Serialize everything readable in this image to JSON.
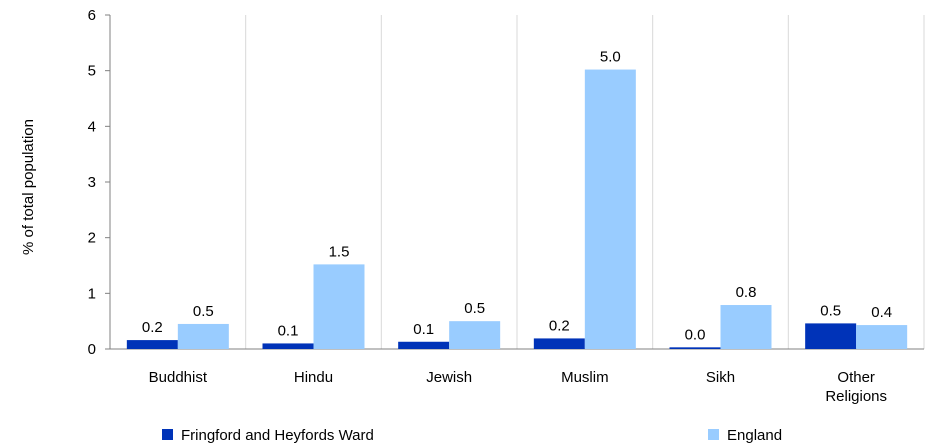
{
  "chart_data": {
    "type": "bar",
    "ylabel": "% of total population",
    "ylim": [
      0,
      6
    ],
    "yticks": [
      0,
      1,
      2,
      3,
      4,
      5,
      6
    ],
    "categories": [
      [
        "Buddhist"
      ],
      [
        "Hindu"
      ],
      [
        "Jewish"
      ],
      [
        "Muslim"
      ],
      [
        "Sikh"
      ],
      [
        "Other",
        "Religions"
      ]
    ],
    "series": [
      {
        "name": "Fringford and Heyfords Ward",
        "color": "#0033b8",
        "values": [
          0.16,
          0.1,
          0.13,
          0.19,
          0.03,
          0.46
        ],
        "labels": [
          "0.2",
          "0.1",
          "0.1",
          "0.2",
          "0.0",
          "0.5"
        ]
      },
      {
        "name": "England",
        "color": "#99ccff",
        "values": [
          0.45,
          1.52,
          0.5,
          5.02,
          0.79,
          0.43
        ],
        "labels": [
          "0.5",
          "1.5",
          "0.5",
          "5.0",
          "0.8",
          "0.4"
        ]
      }
    ],
    "grid": "vertical",
    "legend": "bottom"
  }
}
